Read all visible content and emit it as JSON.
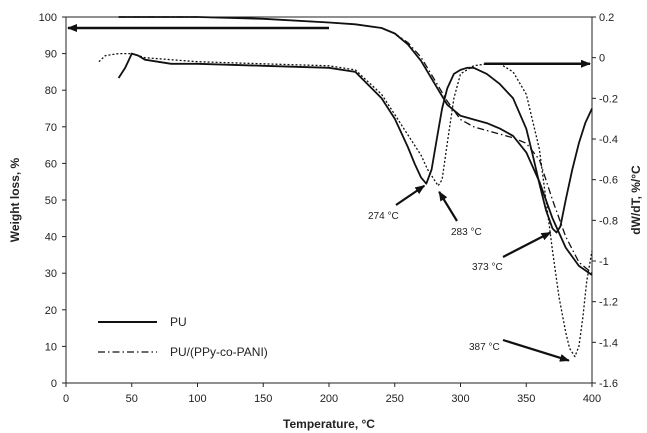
{
  "chart_data": {
    "type": "line",
    "xlabel": "Temperature, °C",
    "ylabel_left": "Weight loss, %",
    "ylabel_right": "dW/dT, %/°C",
    "xlim": [
      0,
      400
    ],
    "ylim_left": [
      0,
      100
    ],
    "ylim_right": [
      -1.6,
      0.2
    ],
    "x_ticks": [
      0,
      50,
      100,
      150,
      200,
      250,
      300,
      350,
      400
    ],
    "y_left_ticks": [
      0,
      10,
      20,
      30,
      40,
      50,
      60,
      70,
      80,
      90,
      100
    ],
    "y_right_ticks": [
      0.2,
      0,
      -0.2,
      -0.4,
      -0.6,
      -0.8,
      -1,
      -1.2,
      -1.4,
      -1.6
    ],
    "legend_position": "bottom-left",
    "legend": [
      {
        "name": "PU",
        "style": "solid"
      },
      {
        "name": "PU/(PPy-co-PANI)",
        "style": "dash-dot"
      }
    ],
    "series": [
      {
        "name": "PU",
        "kind": "weight loss",
        "axis": "left",
        "style": "solid",
        "x": [
          40,
          100,
          150,
          200,
          220,
          240,
          250,
          260,
          270,
          280,
          290,
          300,
          310,
          320,
          330,
          340,
          350,
          360,
          370,
          380,
          390,
          400
        ],
        "y": [
          100,
          100,
          99.5,
          98.5,
          98,
          97,
          95.5,
          92.5,
          88,
          82,
          76,
          73,
          72,
          71,
          69.5,
          67.5,
          63,
          55,
          45,
          37,
          32,
          29.5
        ]
      },
      {
        "name": "PU/(PPy-co-PANI)",
        "kind": "weight loss",
        "axis": "left",
        "style": "dash-dot",
        "x": [
          40,
          100,
          150,
          200,
          220,
          240,
          250,
          260,
          270,
          280,
          290,
          300,
          310,
          320,
          330,
          340,
          350,
          360,
          370,
          380,
          390,
          400
        ],
        "y": [
          100,
          100,
          99.5,
          98.5,
          98,
          97,
          95.5,
          93,
          89,
          83,
          77,
          72,
          70,
          69,
          68,
          67,
          65.5,
          61,
          50,
          40,
          33,
          30
        ]
      },
      {
        "name": "PU",
        "kind": "derivative",
        "axis": "right",
        "style": "solid",
        "x": [
          40,
          45,
          50,
          55,
          60,
          80,
          100,
          150,
          200,
          220,
          240,
          250,
          260,
          265,
          270,
          274,
          278,
          282,
          286,
          290,
          295,
          300,
          305,
          310,
          320,
          330,
          340,
          350,
          355,
          360,
          365,
          370,
          373,
          376,
          380,
          385,
          390,
          395,
          400
        ],
        "y": [
          -0.1,
          -0.05,
          0.02,
          0.01,
          -0.01,
          -0.03,
          -0.03,
          -0.04,
          -0.05,
          -0.07,
          -0.2,
          -0.3,
          -0.44,
          -0.52,
          -0.59,
          -0.62,
          -0.55,
          -0.4,
          -0.25,
          -0.15,
          -0.08,
          -0.06,
          -0.05,
          -0.05,
          -0.08,
          -0.13,
          -0.2,
          -0.35,
          -0.48,
          -0.62,
          -0.75,
          -0.84,
          -0.86,
          -0.83,
          -0.7,
          -0.55,
          -0.42,
          -0.32,
          -0.25
        ]
      },
      {
        "name": "PU/(PPy-co-PANI)",
        "kind": "derivative",
        "axis": "right",
        "style": "dotted",
        "x": [
          25,
          30,
          40,
          50,
          60,
          80,
          100,
          150,
          200,
          220,
          240,
          250,
          260,
          270,
          275,
          280,
          283,
          286,
          290,
          295,
          300,
          310,
          320,
          330,
          340,
          350,
          360,
          365,
          370,
          375,
          380,
          383,
          387,
          390,
          393,
          396,
          400
        ],
        "y": [
          -0.02,
          0.01,
          0.02,
          0.02,
          0.0,
          -0.01,
          -0.02,
          -0.03,
          -0.04,
          -0.06,
          -0.18,
          -0.28,
          -0.38,
          -0.48,
          -0.55,
          -0.6,
          -0.63,
          -0.6,
          -0.42,
          -0.2,
          -0.08,
          -0.04,
          -0.03,
          -0.03,
          -0.07,
          -0.18,
          -0.45,
          -0.7,
          -0.95,
          -1.18,
          -1.35,
          -1.43,
          -1.47,
          -1.42,
          -1.28,
          -1.1,
          -0.95
        ]
      }
    ],
    "annotations": [
      {
        "text": "274 °C",
        "x": 274,
        "y_right": -0.62
      },
      {
        "text": "283 °C",
        "x": 283,
        "y_right": -0.63
      },
      {
        "text": "373 °C",
        "x": 373,
        "y_right": -0.86
      },
      {
        "text": "387 °C",
        "x": 387,
        "y_right": -1.47
      }
    ]
  }
}
